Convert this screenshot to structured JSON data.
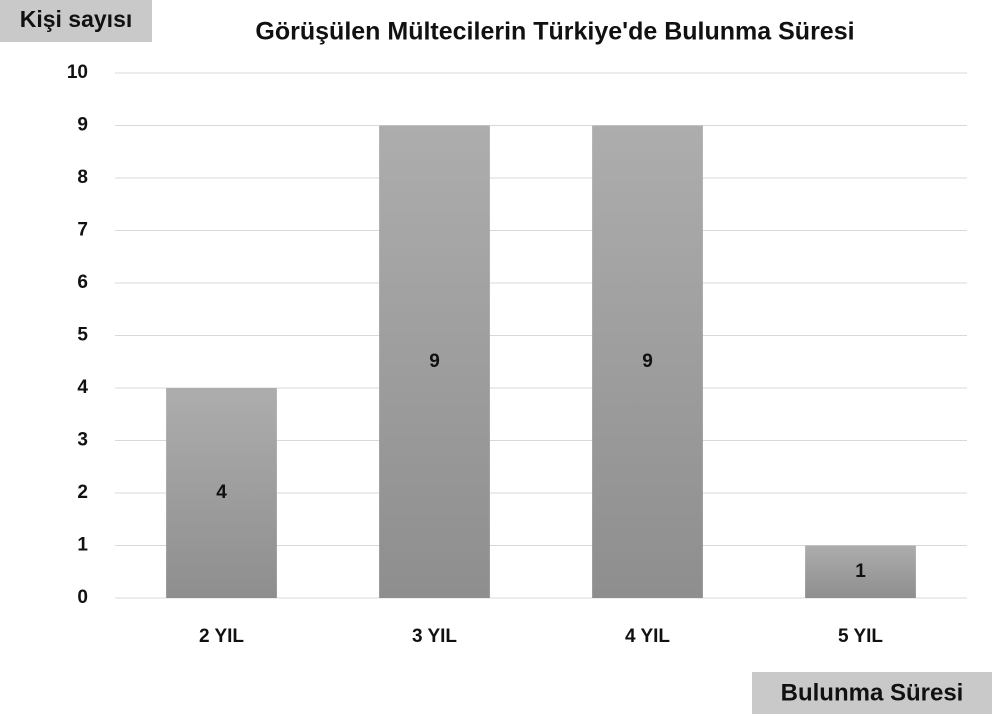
{
  "chart_data": {
    "type": "bar",
    "title": "Görüşülen Mültecilerin Türkiye'de Bulunma Süresi",
    "y_label": "Kişi sayısı",
    "x_label": "Bulunma Süresi",
    "categories": [
      "2 YIL",
      "3 YIL",
      "4 YIL",
      "5 YIL"
    ],
    "values": [
      4,
      9,
      9,
      1
    ],
    "color": "#a0a0a0",
    "ylim": [
      0,
      10
    ],
    "yticks": [
      0,
      1,
      2,
      3,
      4,
      5,
      6,
      7,
      8,
      9,
      10
    ],
    "grid": true
  }
}
